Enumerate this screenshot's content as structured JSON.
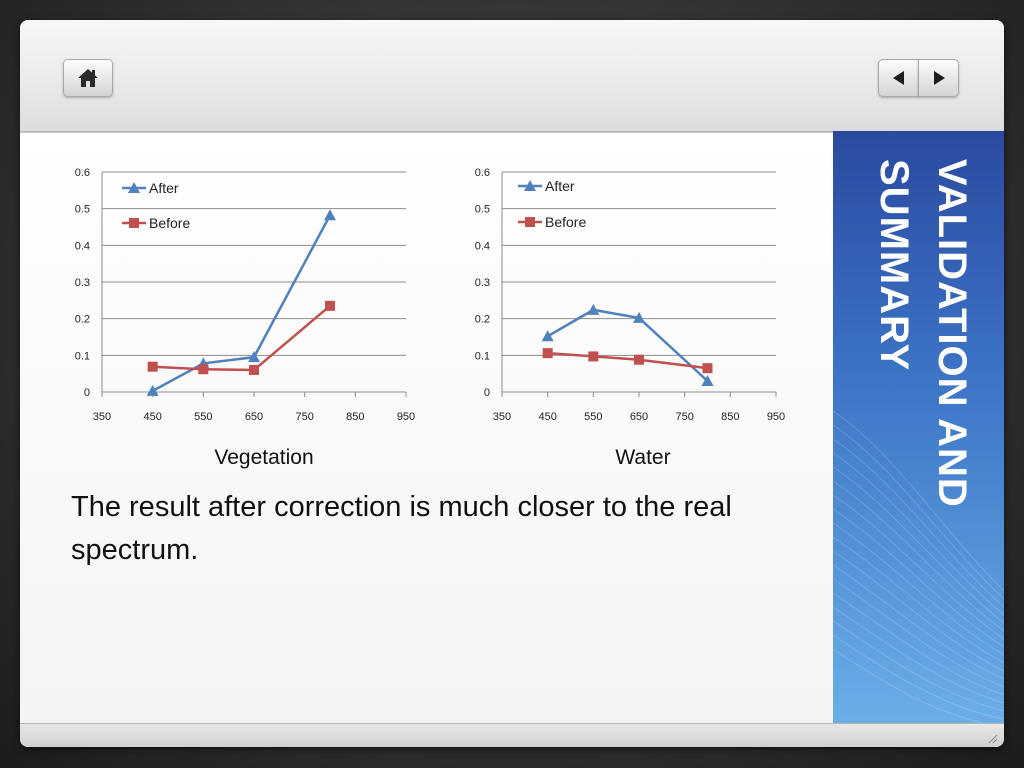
{
  "nav": {
    "home_icon": "home-icon",
    "prev_icon": "left-arrow-icon",
    "next_icon": "right-arrow-icon"
  },
  "side_title": "VALIDATION AND\nSUMMARY",
  "colors": {
    "after": "#4f81bd",
    "before": "#c0504d",
    "sidebar": "#3f78c8",
    "grid": "#8c8c8c"
  },
  "chart_data": [
    {
      "type": "line",
      "caption": "Vegetation",
      "x_ticks": [
        "350",
        "450",
        "550",
        "650",
        "750",
        "850",
        "950"
      ],
      "y_ticks": [
        "0",
        "0.1",
        "0.2",
        "0.3",
        "0.4",
        "0.5",
        "0.6"
      ],
      "xlim": [
        350,
        950
      ],
      "ylim": [
        0,
        0.6
      ],
      "grid": true,
      "legend_position": "top-left",
      "series": [
        {
          "name": "After",
          "marker": "triangle",
          "x": [
            450,
            550,
            650,
            800
          ],
          "y": [
            0.003,
            0.078,
            0.095,
            0.482
          ]
        },
        {
          "name": "Before",
          "marker": "square",
          "x": [
            450,
            550,
            650,
            800
          ],
          "y": [
            0.069,
            0.062,
            0.06,
            0.235
          ]
        }
      ]
    },
    {
      "type": "line",
      "caption": "Water",
      "x_ticks": [
        "350",
        "450",
        "550",
        "650",
        "750",
        "850",
        "950"
      ],
      "y_ticks": [
        "0",
        "0.1",
        "0.2",
        "0.3",
        "0.4",
        "0.5",
        "0.6"
      ],
      "xlim": [
        350,
        950
      ],
      "ylim": [
        0,
        0.6
      ],
      "grid": true,
      "legend_position": "top-left",
      "series": [
        {
          "name": "After",
          "marker": "triangle",
          "x": [
            450,
            550,
            650,
            800
          ],
          "y": [
            0.152,
            0.224,
            0.202,
            0.03
          ]
        },
        {
          "name": "Before",
          "marker": "square",
          "x": [
            450,
            550,
            650,
            800
          ],
          "y": [
            0.106,
            0.097,
            0.088,
            0.065
          ]
        }
      ]
    }
  ],
  "body_text": "The result after correction is much closer to the real spectrum."
}
